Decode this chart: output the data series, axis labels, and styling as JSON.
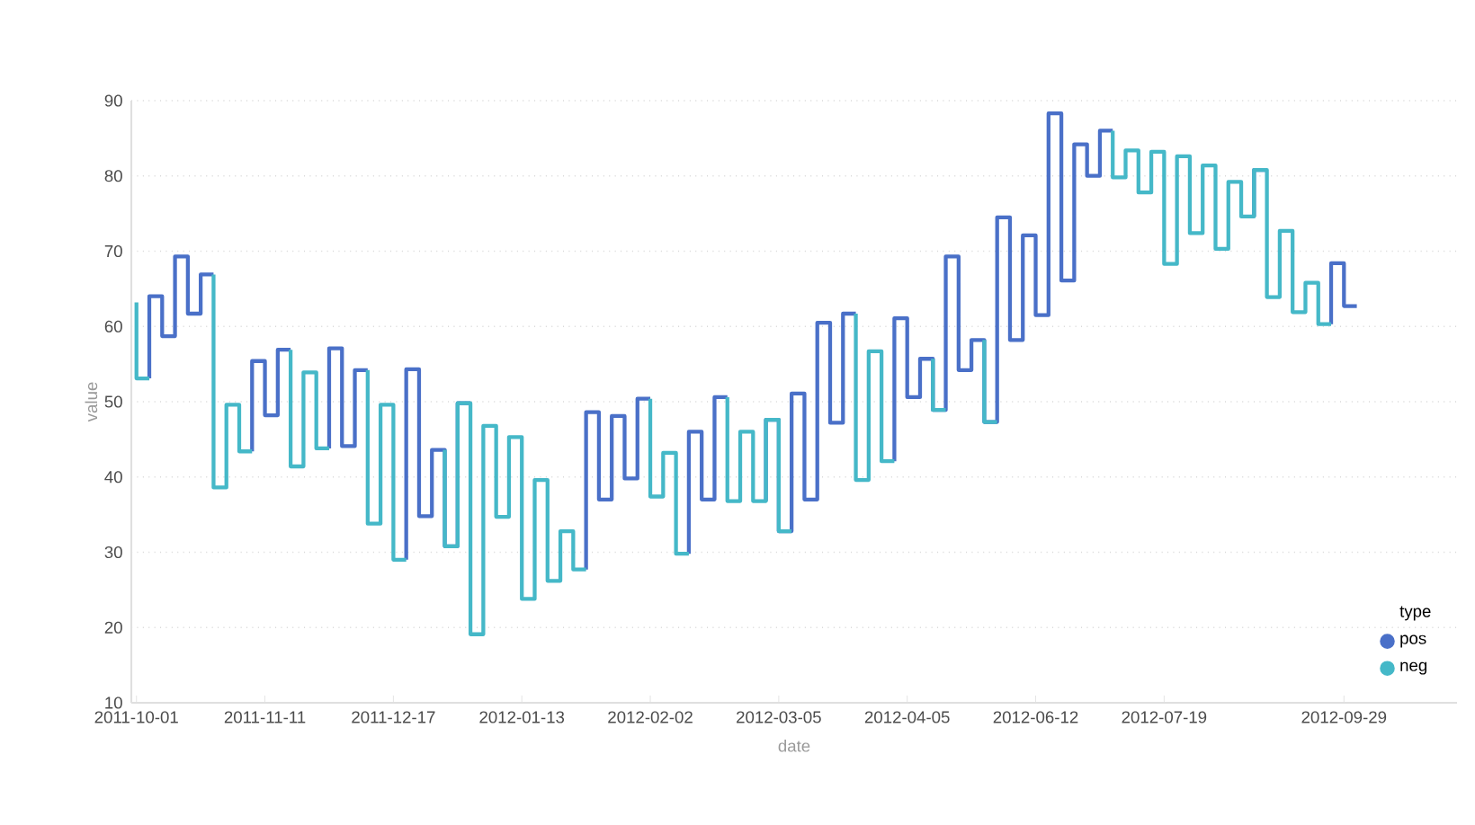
{
  "chart_data": {
    "type": "step",
    "xlabel": "date",
    "ylabel": "value",
    "legend_title": "type",
    "categories": [
      "2011-10-01",
      null,
      null,
      null,
      null,
      null,
      null,
      null,
      null,
      null,
      "2011-11-11",
      null,
      null,
      null,
      null,
      null,
      null,
      null,
      null,
      null,
      "2011-12-17",
      null,
      null,
      null,
      null,
      null,
      null,
      null,
      null,
      null,
      "2012-01-13",
      null,
      null,
      null,
      null,
      null,
      null,
      null,
      null,
      null,
      "2012-02-02",
      null,
      null,
      null,
      null,
      null,
      null,
      null,
      null,
      null,
      "2012-03-05",
      null,
      null,
      null,
      null,
      null,
      null,
      null,
      null,
      null,
      "2012-04-05",
      null,
      null,
      null,
      null,
      null,
      null,
      null,
      null,
      null,
      "2012-06-12",
      null,
      null,
      null,
      null,
      null,
      null,
      null,
      null,
      null,
      "2012-07-19",
      null,
      null,
      null,
      null,
      null,
      null,
      null,
      null,
      null,
      null,
      null,
      null,
      null,
      "2012-09-29",
      null
    ],
    "series": [
      {
        "name": "pos",
        "color": "#4a70c8",
        "values": [
          null,
          53.1,
          64.0,
          58.7,
          69.3,
          61.7,
          66.9,
          null,
          null,
          43.4,
          55.4,
          48.2,
          56.9,
          null,
          null,
          43.8,
          57.1,
          44.1,
          54.2,
          null,
          null,
          29.0,
          54.3,
          34.8,
          43.6,
          30.8,
          49.8,
          null,
          null,
          null,
          null,
          null,
          null,
          null,
          null,
          27.7,
          48.6,
          37.0,
          48.1,
          39.8,
          50.4,
          null,
          null,
          29.8,
          46.0,
          37.0,
          50.6,
          null,
          null,
          36.8,
          47.6,
          32.8,
          51.1,
          37.0,
          60.5,
          47.2,
          61.7,
          null,
          null,
          42.1,
          61.1,
          50.6,
          55.7,
          48.9,
          69.3,
          54.2,
          58.2,
          47.3,
          74.5,
          58.2,
          72.1,
          61.5,
          88.3,
          66.1,
          84.2,
          80.0,
          86.0,
          null,
          null,
          null,
          null,
          null,
          null,
          null,
          null,
          null,
          null,
          74.6,
          80.8,
          null,
          null,
          null,
          null,
          60.3,
          68.4,
          62.7
        ]
      },
      {
        "name": "neg",
        "color": "#45b8c8",
        "values": [
          63.2,
          53.1,
          null,
          null,
          null,
          null,
          66.9,
          38.6,
          49.6,
          43.4,
          null,
          null,
          56.9,
          41.4,
          53.9,
          43.8,
          null,
          null,
          54.2,
          33.8,
          49.6,
          29.0,
          null,
          null,
          43.6,
          30.8,
          49.8,
          19.1,
          46.8,
          34.7,
          45.3,
          23.8,
          39.6,
          26.2,
          32.8,
          27.7,
          null,
          null,
          null,
          null,
          50.4,
          37.4,
          43.2,
          29.8,
          null,
          null,
          50.6,
          36.8,
          46.0,
          36.8,
          47.6,
          32.8,
          null,
          null,
          null,
          null,
          61.7,
          39.6,
          56.7,
          42.1,
          null,
          null,
          55.7,
          48.9,
          null,
          null,
          58.2,
          47.3,
          null,
          null,
          null,
          null,
          null,
          null,
          null,
          null,
          86.0,
          79.8,
          83.4,
          77.8,
          83.2,
          68.3,
          82.6,
          72.4,
          81.4,
          70.3,
          79.2,
          74.6,
          80.8,
          63.9,
          72.7,
          61.9,
          65.8,
          60.3,
          null,
          null
        ]
      }
    ],
    "ylim": [
      10,
      90
    ],
    "yticks": [
      10,
      20,
      30,
      40,
      50,
      60,
      70,
      80,
      90
    ],
    "grid": "y",
    "legend": "bottom right"
  }
}
